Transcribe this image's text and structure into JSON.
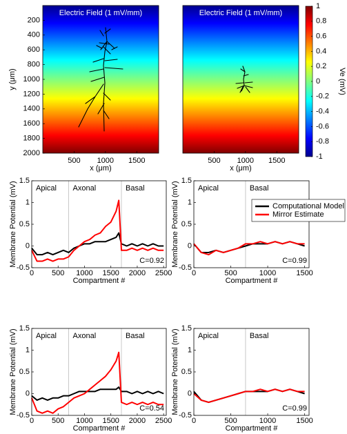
{
  "chart_data": [
    {
      "type": "heatmap",
      "title": "Electric Field (1 mV/mm)",
      "xlabel": "x (μm)",
      "ylabel": "y (μm)",
      "xlim": [
        0,
        1850
      ],
      "ylim": [
        0,
        2000
      ],
      "y_reversed": true,
      "xticks": [
        500,
        1000,
        1500
      ],
      "yticks": [
        200,
        400,
        600,
        800,
        1000,
        1200,
        1400,
        1600,
        1800,
        2000
      ]
    },
    {
      "type": "heatmap",
      "title": "Electric Field (1 mV/mm)",
      "xlabel": "x (μm)",
      "xlim": [
        0,
        1850
      ],
      "ylim": [
        0,
        2000
      ],
      "y_reversed": true,
      "xticks": [
        500,
        1000,
        1500
      ],
      "colorbar": {
        "label": "Ve (mV)",
        "lim": [
          -1,
          1
        ],
        "ticks": [
          1,
          0.8,
          0.6,
          0.4,
          0.2,
          0,
          -0.2,
          -0.4,
          -0.6,
          -0.8,
          -1
        ]
      }
    },
    {
      "type": "line",
      "xlabel": "Compartment #",
      "ylabel": "Membrane Potential (mV)",
      "xlim": [
        0,
        2550
      ],
      "ylim": [
        -0.5,
        1.5
      ],
      "xticks": [
        0,
        500,
        1000,
        1500,
        2000,
        2500
      ],
      "yticks": [
        -0.5,
        0,
        0.5,
        1,
        1.5
      ],
      "regions": [
        "Apical",
        "Axonal",
        "Basal"
      ],
      "region_boundaries": [
        700,
        1700
      ],
      "annotation": "C=0.92",
      "x": [
        0,
        100,
        200,
        300,
        400,
        500,
        600,
        700,
        800,
        900,
        1000,
        1100,
        1200,
        1300,
        1400,
        1500,
        1600,
        1650,
        1700,
        1800,
        1900,
        2000,
        2100,
        2200,
        2300,
        2400,
        2500
      ],
      "series": [
        {
          "color": "#000000",
          "values": [
            -0.05,
            -0.2,
            -0.2,
            -0.15,
            -0.2,
            -0.15,
            -0.1,
            -0.15,
            -0.05,
            0,
            0.05,
            0.05,
            0.1,
            0.1,
            0.1,
            0.15,
            0.2,
            0.3,
            0.05,
            0,
            0.05,
            0,
            0.05,
            0,
            0.05,
            0,
            0
          ]
        },
        {
          "color": "#ff0000",
          "values": [
            -0.1,
            -0.35,
            -0.35,
            -0.3,
            -0.35,
            -0.3,
            -0.3,
            -0.25,
            -0.1,
            0,
            0.1,
            0.15,
            0.25,
            0.3,
            0.45,
            0.55,
            0.8,
            1.05,
            -0.1,
            -0.1,
            -0.05,
            -0.1,
            -0.05,
            -0.1,
            -0.05,
            -0.1,
            -0.1
          ]
        }
      ]
    },
    {
      "type": "line",
      "xlabel": "Compartment #",
      "ylabel": "Membrane Potential (mV)",
      "xlim": [
        0,
        1560
      ],
      "ylim": [
        -0.5,
        1.5
      ],
      "xticks": [
        0,
        500,
        1000,
        1500
      ],
      "yticks": [
        -0.5,
        0,
        0.5,
        1,
        1.5
      ],
      "regions": [
        "Apical",
        "Basal"
      ],
      "region_boundaries": [
        700
      ],
      "annotation": "C=0.99",
      "legend": "upper right",
      "x": [
        0,
        100,
        200,
        300,
        400,
        500,
        600,
        700,
        800,
        900,
        1000,
        1100,
        1200,
        1300,
        1400,
        1500
      ],
      "series": [
        {
          "name": "Computational Model",
          "color": "#000000",
          "values": [
            0.05,
            -0.15,
            -0.15,
            -0.1,
            -0.15,
            -0.1,
            -0.05,
            0,
            0.05,
            0.05,
            0.05,
            0.1,
            0.05,
            0.1,
            0.05,
            0
          ]
        },
        {
          "name": "Mirror Estimate",
          "color": "#ff0000",
          "values": [
            0.05,
            -0.15,
            -0.2,
            -0.1,
            -0.15,
            -0.1,
            -0.05,
            0.05,
            0.05,
            0.1,
            0.05,
            0.1,
            0.05,
            0.1,
            0.05,
            0.05
          ]
        }
      ]
    },
    {
      "type": "line",
      "xlabel": "Compartment #",
      "ylabel": "Membrane Potential (mV)",
      "xlim": [
        0,
        2550
      ],
      "ylim": [
        -0.5,
        1.5
      ],
      "xticks": [
        0,
        500,
        1000,
        1500,
        2000,
        2500
      ],
      "yticks": [
        -0.5,
        0,
        0.5,
        1,
        1.5
      ],
      "regions": [
        "Apical",
        "Axonal",
        "Basal"
      ],
      "region_boundaries": [
        700,
        1700
      ],
      "annotation": "C=0.54",
      "x": [
        0,
        100,
        200,
        300,
        400,
        500,
        600,
        700,
        800,
        900,
        1000,
        1100,
        1200,
        1300,
        1400,
        1500,
        1600,
        1650,
        1700,
        1800,
        1900,
        2000,
        2100,
        2200,
        2300,
        2400,
        2500
      ],
      "series": [
        {
          "color": "#000000",
          "values": [
            -0.05,
            -0.15,
            -0.1,
            -0.15,
            -0.1,
            -0.1,
            -0.05,
            -0.05,
            0,
            0.05,
            0.05,
            0.05,
            0.05,
            0.1,
            0.1,
            0.1,
            0.1,
            0.15,
            0.05,
            0.05,
            0,
            0.05,
            0,
            0.05,
            0,
            0.05,
            0
          ]
        },
        {
          "color": "#ff0000",
          "values": [
            -0.1,
            -0.4,
            -0.45,
            -0.4,
            -0.45,
            -0.35,
            -0.3,
            -0.2,
            -0.1,
            -0.05,
            0,
            0.1,
            0.2,
            0.3,
            0.4,
            0.55,
            0.75,
            0.95,
            -0.2,
            -0.25,
            -0.2,
            -0.25,
            -0.2,
            -0.25,
            -0.2,
            -0.25,
            -0.25
          ]
        }
      ]
    },
    {
      "type": "line",
      "xlabel": "Compartment #",
      "ylabel": "Membrane Potential (mV)",
      "xlim": [
        0,
        1560
      ],
      "ylim": [
        -0.5,
        1.5
      ],
      "xticks": [
        0,
        500,
        1000,
        1500
      ],
      "yticks": [
        -0.5,
        0,
        0.5,
        1,
        1.5
      ],
      "regions": [
        "Apical",
        "Basal"
      ],
      "region_boundaries": [
        700
      ],
      "annotation": "C=0.99",
      "x": [
        0,
        100,
        200,
        300,
        400,
        500,
        600,
        700,
        800,
        900,
        1000,
        1100,
        1200,
        1300,
        1400,
        1500
      ],
      "series": [
        {
          "color": "#000000",
          "values": [
            0.05,
            -0.15,
            -0.2,
            -0.15,
            -0.1,
            -0.05,
            0,
            0.05,
            0.05,
            0.05,
            0.05,
            0.1,
            0.05,
            0.1,
            0.05,
            0
          ]
        },
        {
          "color": "#ff0000",
          "values": [
            0,
            -0.15,
            -0.2,
            -0.15,
            -0.1,
            -0.05,
            0,
            0.05,
            0.05,
            0.1,
            0.05,
            0.1,
            0.05,
            0.1,
            0.05,
            0.05
          ]
        }
      ]
    }
  ]
}
